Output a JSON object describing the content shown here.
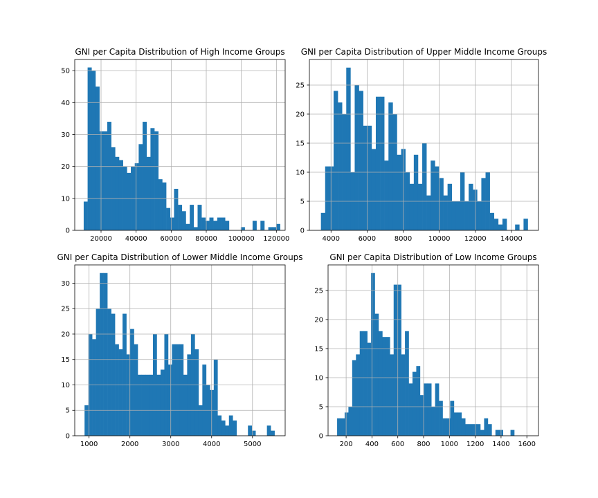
{
  "figure": {
    "background": "#ffffff",
    "bar_color": "#1f77b4",
    "grid_color": "#b0b0b0"
  },
  "chart_data": [
    {
      "type": "bar",
      "title": "GNI per Capita Distribution of High Income Groups",
      "xlabel": "",
      "ylabel": "",
      "grid": true,
      "xlim": [
        5000,
        125000
      ],
      "ylim": [
        0,
        53.5
      ],
      "xticks": [
        20000,
        40000,
        60000,
        80000,
        100000,
        120000
      ],
      "yticks": [
        0,
        10,
        20,
        30,
        40,
        50
      ],
      "bin_width": 2240,
      "bins_start": 10100,
      "values": [
        9,
        51,
        50,
        45,
        31,
        31,
        34,
        26,
        23,
        22,
        20,
        18,
        20,
        21,
        27,
        34,
        23,
        32,
        31,
        16,
        15,
        7,
        4,
        13,
        8,
        6,
        2,
        8,
        1,
        8,
        4,
        3,
        4,
        3,
        4,
        4,
        3,
        0,
        0,
        0,
        1,
        0,
        0,
        3,
        0,
        3,
        0,
        1,
        1,
        2
      ]
    },
    {
      "type": "bar",
      "title": "GNI per Capita Distribution of Upper Middle Income Groups",
      "xlabel": "",
      "ylabel": "",
      "grid": true,
      "xlim": [
        2800,
        15500
      ],
      "ylim": [
        0,
        29.4
      ],
      "xticks": [
        4000,
        6000,
        8000,
        10000,
        12000,
        14000
      ],
      "yticks": [
        0,
        5,
        10,
        15,
        20,
        25
      ],
      "bin_width": 234,
      "bins_start": 3440,
      "values": [
        3,
        11,
        11,
        24,
        22,
        20,
        28,
        10,
        25,
        24,
        18,
        18,
        14,
        23,
        23,
        12,
        22,
        20,
        13,
        14,
        10,
        8,
        13,
        8,
        15,
        6,
        12,
        11,
        9,
        6,
        8,
        5,
        5,
        10,
        5,
        8,
        7,
        5,
        9,
        10,
        3,
        2,
        1,
        2,
        0,
        0,
        1,
        0,
        2
      ]
    },
    {
      "type": "bar",
      "title": "GNI per Capita Distribution of Lower Middle Income Groups",
      "xlabel": "",
      "ylabel": "",
      "grid": true,
      "xlim": [
        650,
        5800
      ],
      "ylim": [
        0,
        33.6
      ],
      "xticks": [
        1000,
        2000,
        3000,
        4000,
        5000
      ],
      "yticks": [
        0,
        5,
        10,
        15,
        20,
        25,
        30
      ],
      "bin_width": 93,
      "bins_start": 890,
      "values": [
        6,
        20,
        19,
        25,
        32,
        32,
        25,
        24,
        18,
        17,
        24,
        16,
        21,
        18,
        12,
        12,
        12,
        12,
        20,
        12,
        13,
        20,
        14,
        18,
        18,
        18,
        12,
        16,
        20,
        17,
        6,
        14,
        10,
        9,
        15,
        4,
        3,
        2,
        4,
        3,
        0,
        0,
        0,
        2,
        1,
        0,
        0,
        0,
        2,
        1
      ]
    },
    {
      "type": "bar",
      "title": "GNI per Capita Distribution of Low Income Groups",
      "xlabel": "",
      "ylabel": "",
      "grid": true,
      "xlim": [
        60,
        1690
      ],
      "ylim": [
        0,
        29.4
      ],
      "xticks": [
        200,
        400,
        600,
        800,
        1000,
        1200,
        1400,
        1600
      ],
      "yticks": [
        0,
        5,
        10,
        15,
        20,
        25
      ],
      "bin_width": 29.2,
      "bins_start": 130,
      "values": [
        3,
        3,
        4,
        5,
        13,
        14,
        18,
        18,
        16,
        28,
        21,
        18,
        17,
        17,
        14,
        26,
        26,
        14,
        18,
        9,
        11,
        12,
        7,
        9,
        9,
        5,
        9,
        6,
        3,
        3,
        6,
        4,
        4,
        3,
        2,
        2,
        2,
        2,
        1,
        3,
        2,
        0,
        1,
        1,
        0,
        0,
        1
      ]
    }
  ]
}
